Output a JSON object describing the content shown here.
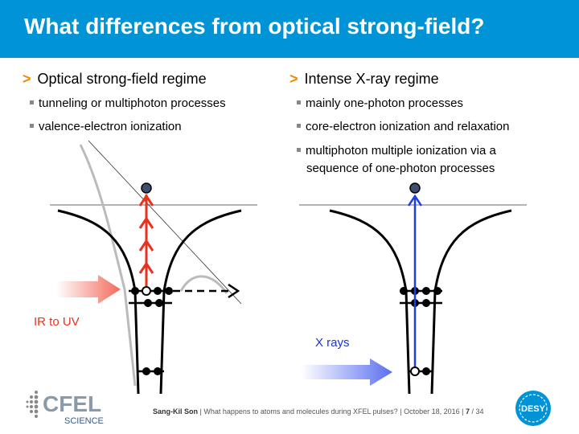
{
  "title": "What differences from optical strong-field?",
  "left": {
    "heading": "Optical strong-field regime",
    "bullets": [
      "tunneling or multiphoton processes",
      "valence-electron ionization"
    ],
    "source_label": "IR to UV"
  },
  "right": {
    "heading": "Intense X-ray regime",
    "bullets": [
      "mainly one-photon processes",
      "core-electron ionization and relaxation",
      "multiphoton multiple ionization via a",
      "sequence of one-photon processes"
    ],
    "source_label": "X rays"
  },
  "heading_marker": ">",
  "footer": {
    "author": "Sang-Kil Son",
    "talk": "What happens to atoms and molecules during XFEL pulses?",
    "date": "October 18, 2016",
    "page": "7",
    "total": "/ 34",
    "sep": "|"
  },
  "logos": {
    "cfel_text": "CFEL",
    "cfel_sub": "SCIENCE",
    "desy_text": "DESY"
  },
  "colors": {
    "title_bar": "#0093d6",
    "marker": "#f08a00",
    "optical_arrow": "#e8321e",
    "xray_arrow": "#1f3fe0",
    "ir_label": "#e8321e",
    "xray_label": "#1a33cc"
  }
}
